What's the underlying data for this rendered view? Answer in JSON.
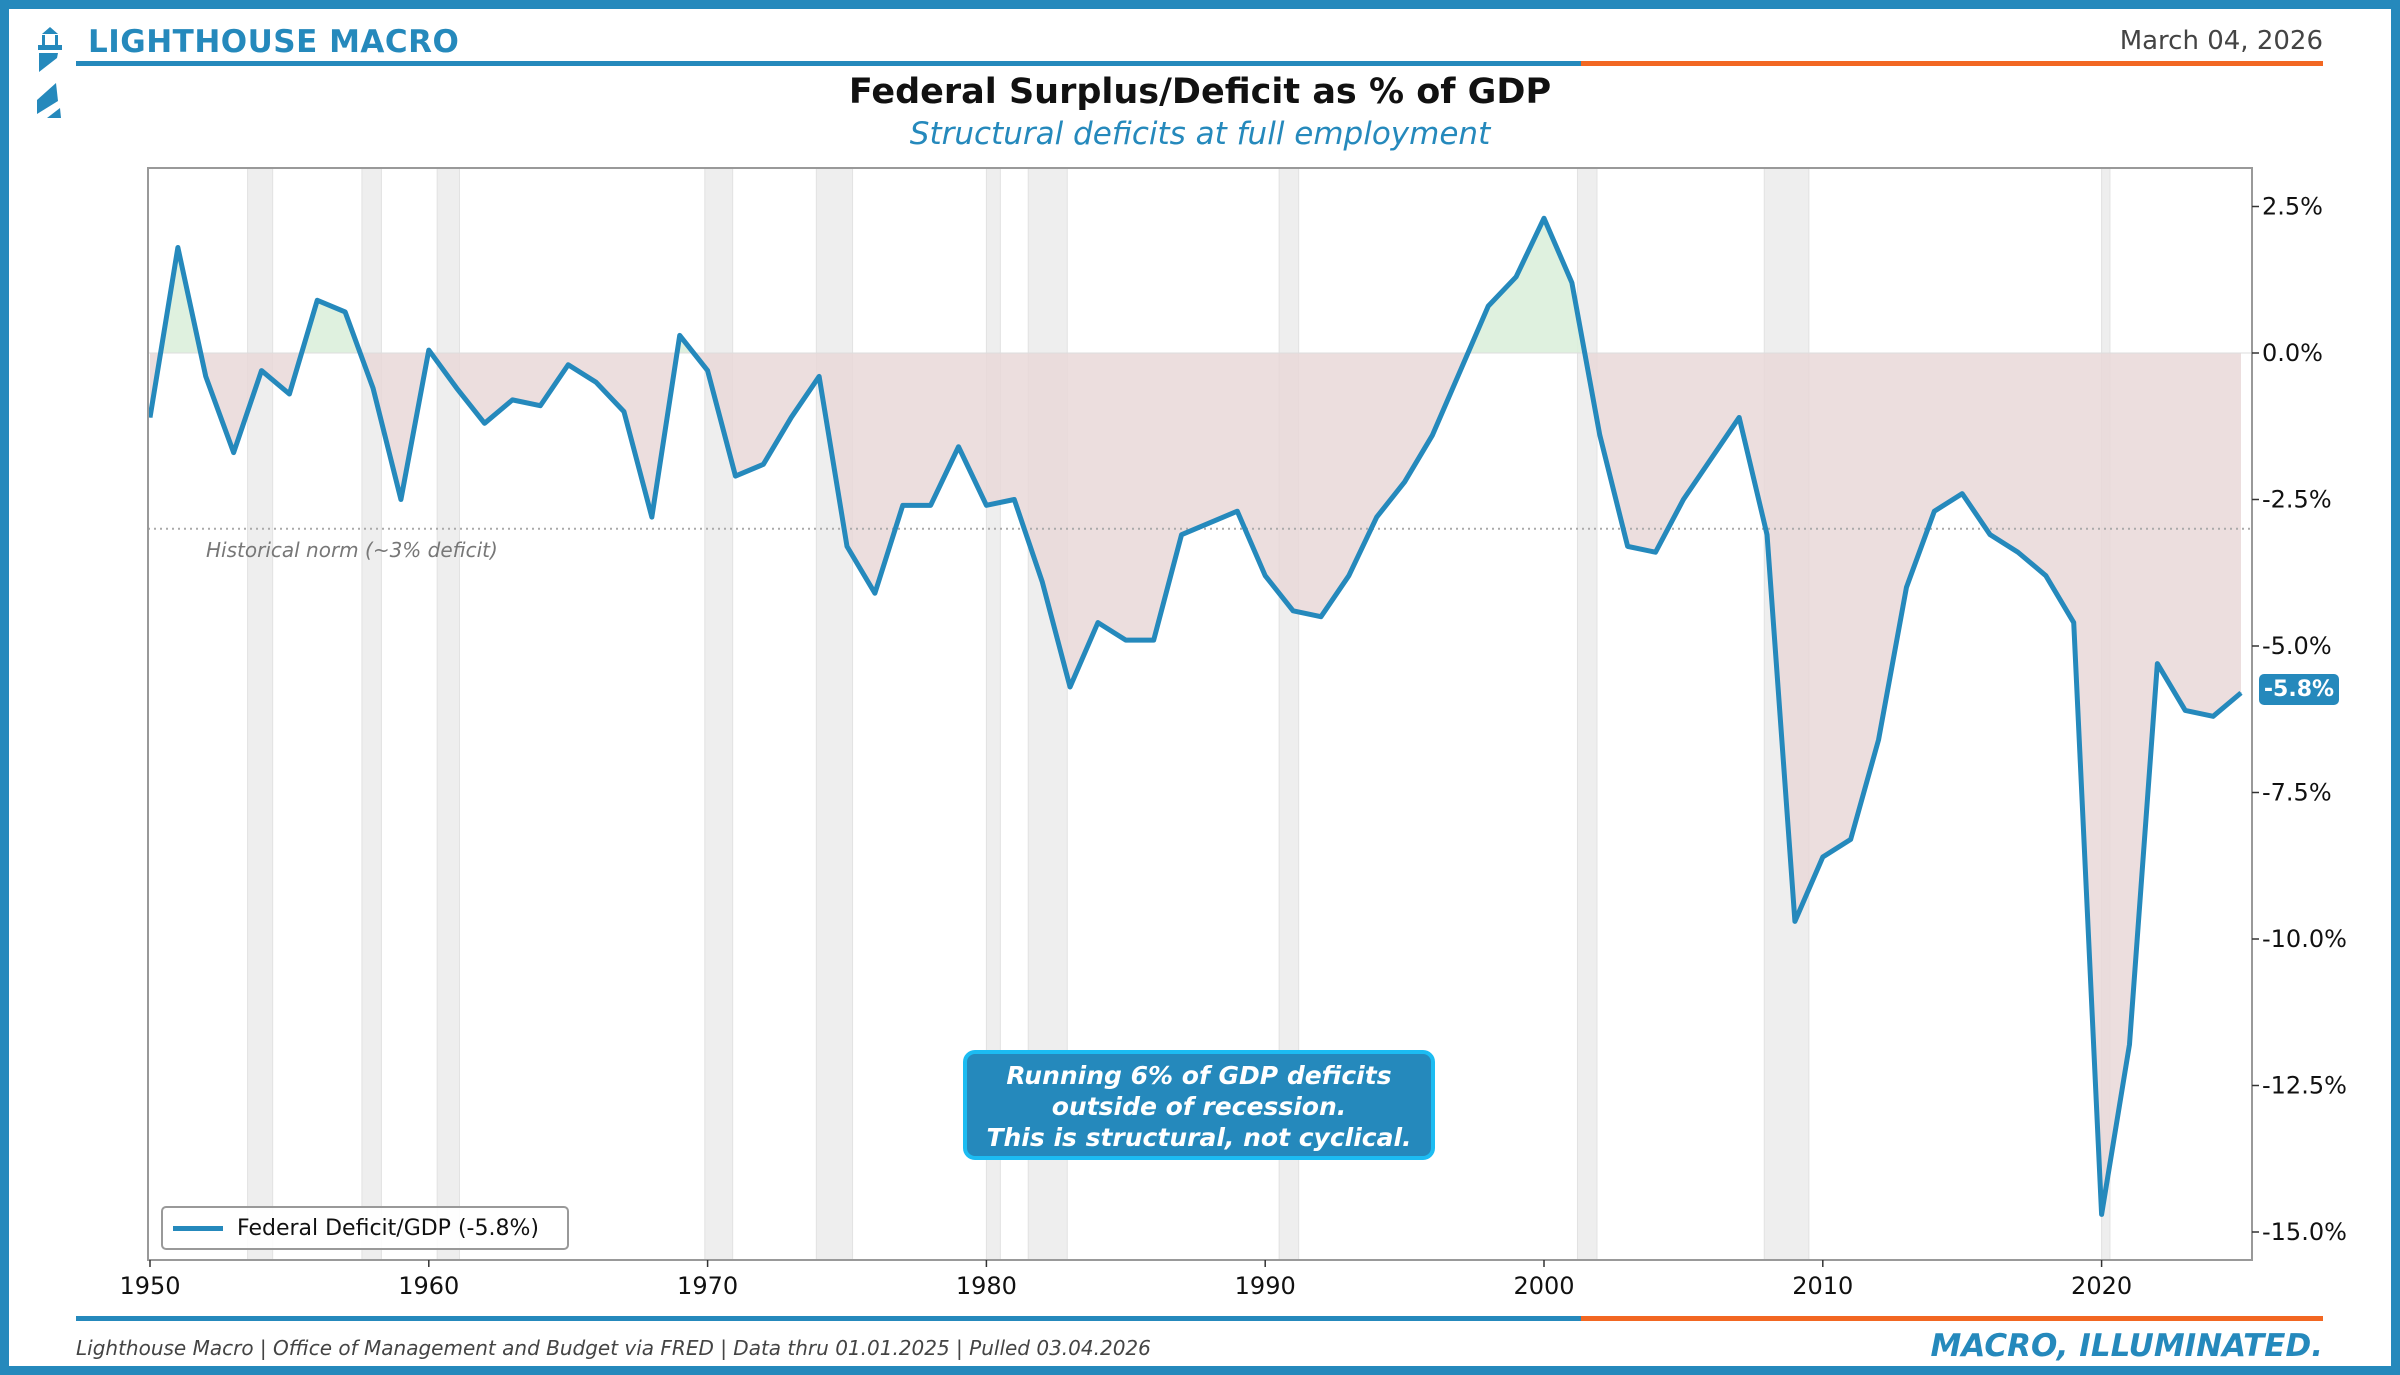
{
  "header": {
    "brand": "LIGHTHOUSE MACRO",
    "date": "March 04, 2026",
    "title": "Federal Surplus/Deficit as % of GDP",
    "subtitle": "Structural deficits at full employment"
  },
  "footer": {
    "source": "Lighthouse Macro | Office of Management and Budget via FRED | Data thru 01.01.2025 | Pulled 03.04.2026",
    "tagline": "MACRO, ILLUMINATED."
  },
  "colors": {
    "brand_blue": "#2589bc",
    "accent_orange": "#f26722",
    "deficit_fill": "#e9d8d8",
    "surplus_fill": "#dcefdc",
    "recession": "#eeeeee"
  },
  "chart_data": {
    "type": "line",
    "title": "Federal Surplus/Deficit as % of GDP",
    "xlabel": "",
    "ylabel": "",
    "xlim": [
      1950,
      2025.5
    ],
    "ylim": [
      -15.5,
      3.1
    ],
    "x_ticks": [
      1950,
      1960,
      1970,
      1980,
      1990,
      2000,
      2010,
      2020
    ],
    "y_ticks": [
      2.5,
      0,
      -2.5,
      -5,
      -7.5,
      -10,
      -12.5,
      -15
    ],
    "y_tick_labels": [
      "2.5%",
      "0.0%",
      "-2.5%",
      "-5.0%",
      "-7.5%",
      "-10.0%",
      "-12.5%",
      "-15.0%"
    ],
    "y_axis_side": "right",
    "legend": {
      "position": "bottom-left",
      "entries": [
        "Federal Deficit/GDP (-5.8%)"
      ]
    },
    "series": [
      {
        "name": "Federal Deficit/GDP (-5.8%)",
        "x": [
          1950,
          1951,
          1952,
          1953,
          1954,
          1955,
          1956,
          1957,
          1958,
          1959,
          1960,
          1961,
          1962,
          1963,
          1964,
          1965,
          1966,
          1967,
          1968,
          1969,
          1970,
          1971,
          1972,
          1973,
          1974,
          1975,
          1976,
          1977,
          1978,
          1979,
          1980,
          1981,
          1982,
          1983,
          1984,
          1985,
          1986,
          1987,
          1988,
          1989,
          1990,
          1991,
          1992,
          1993,
          1994,
          1995,
          1996,
          1997,
          1998,
          1999,
          2000,
          2001,
          2002,
          2003,
          2004,
          2005,
          2006,
          2007,
          2008,
          2009,
          2010,
          2011,
          2012,
          2013,
          2014,
          2015,
          2016,
          2017,
          2018,
          2019,
          2020,
          2021,
          2022,
          2023,
          2024,
          2025
        ],
        "values": [
          -1.1,
          1.8,
          -0.4,
          -1.7,
          -0.3,
          -0.7,
          0.9,
          0.7,
          -0.6,
          -2.5,
          0.05,
          -0.6,
          -1.2,
          -0.8,
          -0.9,
          -0.2,
          -0.5,
          -1.0,
          -2.8,
          0.3,
          -0.3,
          -2.1,
          -1.9,
          -1.1,
          -0.4,
          -3.3,
          -4.1,
          -2.6,
          -2.6,
          -1.6,
          -2.6,
          -2.5,
          -3.9,
          -5.7,
          -4.6,
          -4.9,
          -4.9,
          -3.1,
          -2.9,
          -2.7,
          -3.8,
          -4.4,
          -4.5,
          -3.8,
          -2.8,
          -2.2,
          -1.4,
          -0.3,
          0.8,
          1.3,
          2.3,
          1.2,
          -1.4,
          -3.3,
          -3.4,
          -2.5,
          -1.8,
          -1.1,
          -3.1,
          -9.7,
          -8.6,
          -8.3,
          -6.6,
          -4.0,
          -2.7,
          -2.4,
          -3.1,
          -3.4,
          -3.8,
          -4.6,
          -14.7,
          -11.8,
          -5.3,
          -6.1,
          -6.2,
          -5.8
        ]
      }
    ],
    "recessions": [
      [
        1953.5,
        1954.4
      ],
      [
        1957.6,
        1958.3
      ],
      [
        1960.3,
        1961.1
      ],
      [
        1969.9,
        1970.9
      ],
      [
        1973.9,
        1975.2
      ],
      [
        1980.0,
        1980.5
      ],
      [
        1981.5,
        1982.9
      ],
      [
        1990.5,
        1991.2
      ],
      [
        2001.2,
        2001.9
      ],
      [
        2007.9,
        2009.5
      ],
      [
        2020.0,
        2020.3
      ]
    ],
    "reference_line": {
      "value": -3,
      "label": "Historical norm (~3% deficit)"
    },
    "last_value_label": "-5.8%",
    "annotation": [
      "Running 6% of GDP deficits",
      "outside of recession.",
      "This is structural, not cyclical."
    ]
  }
}
